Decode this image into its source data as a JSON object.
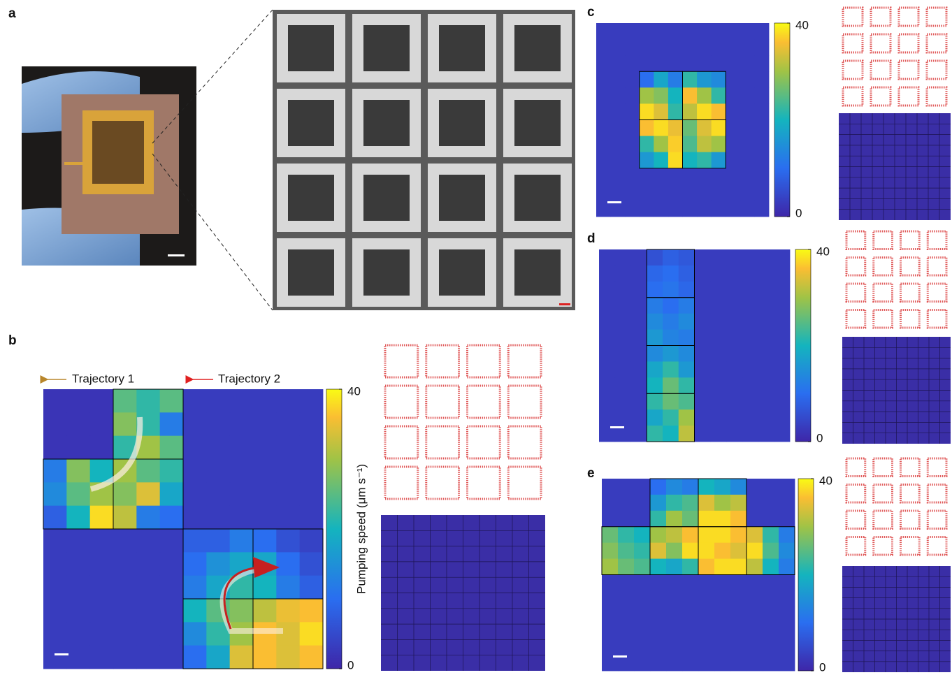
{
  "panel_a": {
    "label": "a"
  },
  "panel_b": {
    "label": "b",
    "legend": [
      "Trajectory 1",
      "Trajectory 2"
    ],
    "colorbar_label": "Pumping speed (μm s⁻¹)",
    "clim": [
      0,
      40
    ],
    "colorbar_ticks": [
      0,
      40
    ],
    "heatmap": [
      [
        2,
        2,
        2,
        25,
        22,
        25,
        3,
        3,
        3,
        3,
        3,
        3
      ],
      [
        2,
        2,
        2,
        28,
        22,
        12,
        3,
        3,
        3,
        3,
        3,
        3
      ],
      [
        2,
        2,
        2,
        22,
        30,
        25,
        3,
        3,
        3,
        3,
        3,
        3
      ],
      [
        12,
        28,
        20,
        30,
        25,
        22,
        3,
        3,
        3,
        3,
        3,
        3
      ],
      [
        14,
        25,
        30,
        28,
        34,
        18,
        3,
        3,
        3,
        3,
        3,
        3
      ],
      [
        8,
        20,
        38,
        32,
        12,
        10,
        3,
        3,
        3,
        3,
        3,
        3
      ],
      [
        3,
        3,
        3,
        3,
        3,
        3,
        8,
        8,
        12,
        10,
        6,
        4
      ],
      [
        3,
        3,
        3,
        3,
        3,
        3,
        10,
        15,
        18,
        18,
        10,
        6
      ],
      [
        3,
        3,
        3,
        3,
        3,
        3,
        12,
        18,
        22,
        20,
        12,
        8
      ],
      [
        3,
        3,
        3,
        3,
        3,
        3,
        20,
        25,
        28,
        32,
        35,
        36
      ],
      [
        3,
        3,
        3,
        3,
        3,
        3,
        14,
        22,
        30,
        36,
        34,
        38
      ],
      [
        3,
        3,
        3,
        3,
        3,
        3,
        10,
        18,
        34,
        36,
        34,
        36
      ]
    ]
  },
  "panel_c": {
    "label": "c",
    "clim": [
      0,
      40
    ],
    "colorbar_ticks": [
      0,
      40
    ],
    "heatmap": [
      [
        3,
        3,
        3,
        3,
        3,
        3,
        3,
        3,
        3,
        3,
        3,
        3
      ],
      [
        3,
        3,
        3,
        3,
        3,
        3,
        3,
        3,
        3,
        3,
        3,
        3
      ],
      [
        3,
        3,
        3,
        3,
        3,
        3,
        3,
        3,
        3,
        3,
        3,
        3
      ],
      [
        3,
        3,
        3,
        10,
        18,
        12,
        22,
        16,
        14,
        3,
        3,
        3
      ],
      [
        3,
        3,
        3,
        30,
        28,
        20,
        36,
        30,
        22,
        3,
        3,
        3
      ],
      [
        3,
        3,
        3,
        38,
        34,
        22,
        32,
        38,
        36,
        3,
        3,
        3
      ],
      [
        3,
        3,
        3,
        36,
        38,
        35,
        26,
        34,
        38,
        3,
        3,
        3
      ],
      [
        3,
        3,
        3,
        22,
        30,
        37,
        24,
        32,
        30,
        3,
        3,
        3
      ],
      [
        3,
        3,
        3,
        16,
        20,
        38,
        20,
        22,
        16,
        3,
        3,
        3
      ],
      [
        3,
        3,
        3,
        3,
        3,
        3,
        3,
        3,
        3,
        3,
        3,
        3
      ],
      [
        3,
        3,
        3,
        3,
        3,
        3,
        3,
        3,
        3,
        3,
        3,
        3
      ],
      [
        3,
        3,
        3,
        3,
        3,
        3,
        3,
        3,
        3,
        3,
        3,
        3
      ]
    ]
  },
  "panel_d": {
    "label": "d",
    "clim": [
      0,
      40
    ],
    "colorbar_ticks": [
      0,
      40
    ],
    "heatmap": [
      [
        3,
        3,
        3,
        6,
        8,
        7,
        3,
        3,
        3,
        3,
        3,
        3
      ],
      [
        3,
        3,
        3,
        9,
        10,
        8,
        3,
        3,
        3,
        3,
        3,
        3
      ],
      [
        3,
        3,
        3,
        10,
        11,
        9,
        3,
        3,
        3,
        3,
        3,
        3
      ],
      [
        3,
        3,
        3,
        12,
        10,
        12,
        3,
        3,
        3,
        3,
        3,
        3
      ],
      [
        3,
        3,
        3,
        14,
        12,
        14,
        3,
        3,
        3,
        3,
        3,
        3
      ],
      [
        3,
        3,
        3,
        16,
        13,
        12,
        3,
        3,
        3,
        3,
        3,
        3
      ],
      [
        3,
        3,
        3,
        14,
        16,
        14,
        3,
        3,
        3,
        3,
        3,
        3
      ],
      [
        3,
        3,
        3,
        18,
        22,
        16,
        3,
        3,
        3,
        3,
        3,
        3
      ],
      [
        3,
        3,
        3,
        20,
        26,
        22,
        3,
        3,
        3,
        3,
        3,
        3
      ],
      [
        3,
        3,
        3,
        22,
        26,
        24,
        3,
        3,
        3,
        3,
        3,
        3
      ],
      [
        3,
        3,
        3,
        18,
        22,
        30,
        3,
        3,
        3,
        3,
        3,
        3
      ],
      [
        3,
        3,
        3,
        22,
        20,
        32,
        3,
        3,
        3,
        3,
        3,
        3
      ]
    ]
  },
  "panel_e": {
    "label": "e",
    "clim": [
      0,
      40
    ],
    "colorbar_ticks": [
      0,
      40
    ],
    "heatmap": [
      [
        3,
        3,
        3,
        10,
        14,
        12,
        20,
        18,
        14,
        3,
        3,
        3
      ],
      [
        3,
        3,
        3,
        16,
        22,
        24,
        34,
        30,
        32,
        3,
        3,
        3
      ],
      [
        3,
        3,
        3,
        22,
        30,
        26,
        38,
        38,
        36,
        3,
        3,
        3
      ],
      [
        26,
        22,
        20,
        30,
        32,
        36,
        38,
        38,
        36,
        34,
        22,
        12
      ],
      [
        28,
        24,
        22,
        34,
        28,
        38,
        38,
        36,
        34,
        38,
        24,
        14
      ],
      [
        30,
        26,
        24,
        20,
        18,
        22,
        36,
        38,
        38,
        32,
        20,
        12
      ],
      [
        3,
        3,
        3,
        3,
        3,
        3,
        3,
        3,
        3,
        3,
        3,
        3
      ],
      [
        3,
        3,
        3,
        3,
        3,
        3,
        3,
        3,
        3,
        3,
        3,
        3
      ],
      [
        3,
        3,
        3,
        3,
        3,
        3,
        3,
        3,
        3,
        3,
        3,
        3
      ],
      [
        3,
        3,
        3,
        3,
        3,
        3,
        3,
        3,
        3,
        3,
        3,
        3
      ],
      [
        3,
        3,
        3,
        3,
        3,
        3,
        3,
        3,
        3,
        3,
        3,
        3
      ],
      [
        3,
        3,
        3,
        3,
        3,
        3,
        3,
        3,
        3,
        3,
        3,
        3
      ]
    ]
  }
}
